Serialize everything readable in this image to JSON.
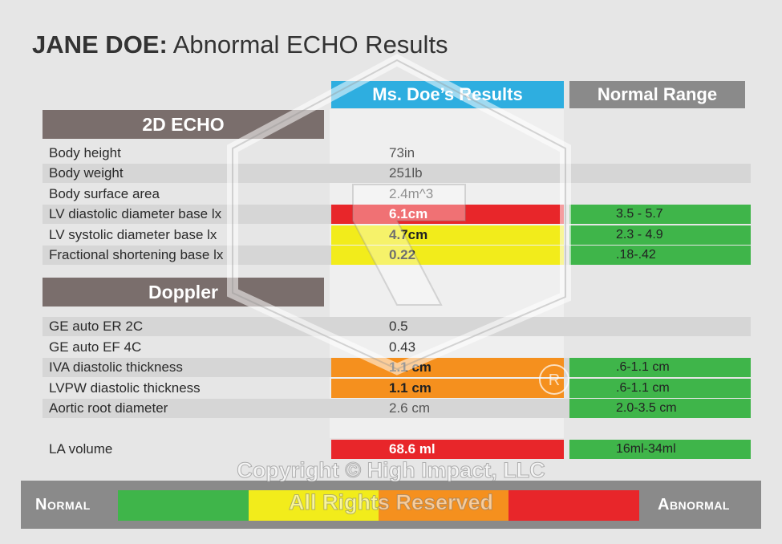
{
  "title": {
    "name": "JANE DOE:",
    "subtitle": "Abnormal ECHO Results"
  },
  "headers": {
    "results": "Ms. Doe’s Results",
    "normal": "Normal Range"
  },
  "sections": {
    "echo": "2D ECHO",
    "doppler": "Doppler"
  },
  "rows": [
    {
      "label": "Body height",
      "value": "73in",
      "normal": ""
    },
    {
      "label": "Body weight",
      "value": "251lb",
      "normal": ""
    },
    {
      "label": "Body surface area",
      "value": "2.4m^3",
      "normal": ""
    },
    {
      "label": "LV diastolic diameter base lx",
      "value": "6.1cm",
      "normal": "3.5 - 5.7"
    },
    {
      "label": "LV systolic diameter base lx",
      "value": "4.7cm",
      "normal": "2.3 - 4.9"
    },
    {
      "label": "Fractional shortening base lx",
      "value": "0.22",
      "normal": ".18-.42"
    },
    {
      "label": "GE auto ER 2C",
      "value": "0.5",
      "normal": ""
    },
    {
      "label": "GE auto EF 4C",
      "value": "0.43",
      "normal": ""
    },
    {
      "label": "IVA diastolic thickness",
      "value": "1.1 cm",
      "normal": ".6-1.1 cm"
    },
    {
      "label": "LVPW diastolic thickness",
      "value": "1.1 cm",
      "normal": ".6-1.1 cm"
    },
    {
      "label": "Aortic root diameter",
      "value": "2.6 cm",
      "normal": "2.0-3.5 cm"
    },
    {
      "label": "LA volume",
      "value": "68.6 ml",
      "normal": "16ml-34ml"
    }
  ],
  "scale": {
    "normal": "Normal",
    "abnormal": "Abnormal"
  },
  "colors": {
    "accent": "#2eaee0",
    "red": "#e8262a",
    "yellow": "#f2ec1b",
    "orange": "#f5901e",
    "green": "#3fb54a",
    "section": "#7a6e6c"
  },
  "watermark": {
    "line1": "Copyright © High Impact, LLC",
    "line2": "All Rights Reserved"
  }
}
